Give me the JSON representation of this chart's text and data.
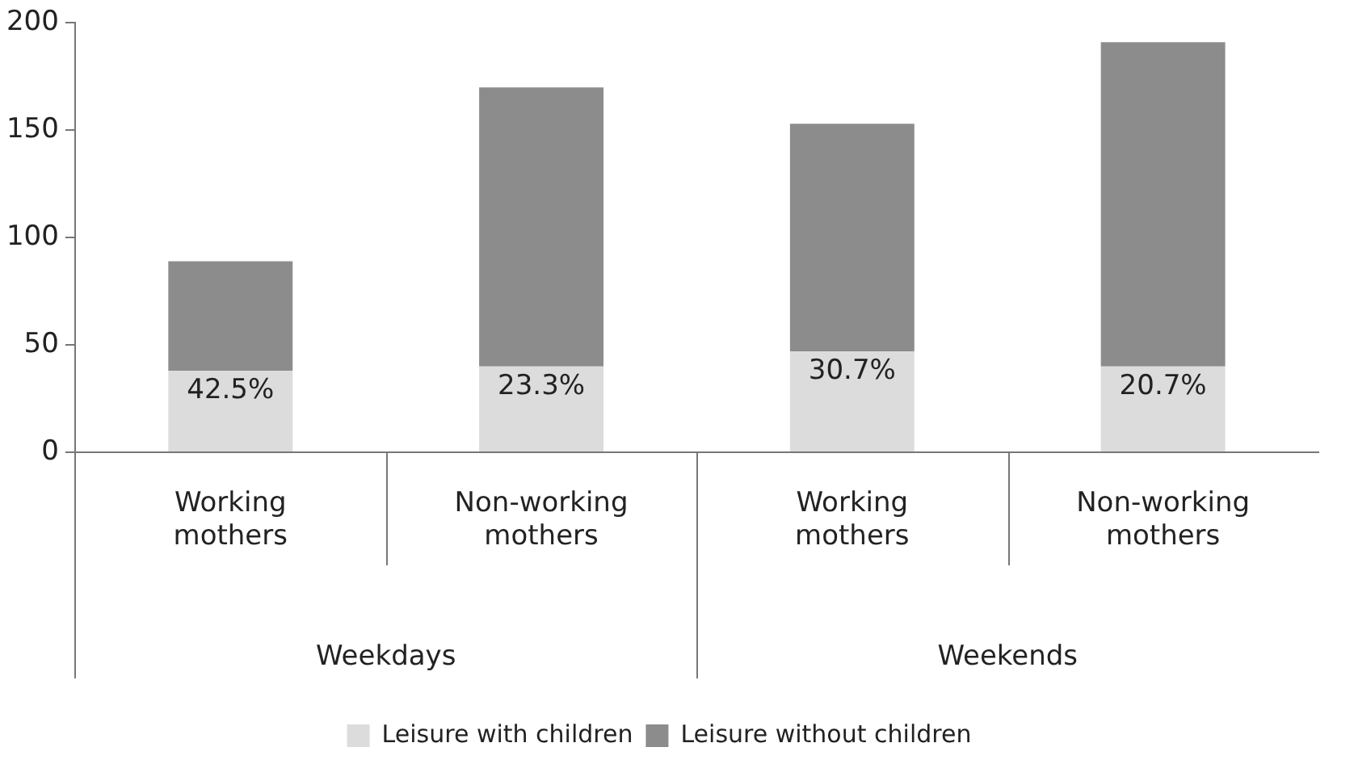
{
  "chart_data": {
    "type": "bar",
    "stacked": true,
    "categories": [
      "Working mothers",
      "Non-working mothers",
      "Working mothers",
      "Non-working mothers"
    ],
    "series": [
      {
        "name": "Leisure with children",
        "color": "#dcdcdc",
        "values": [
          38,
          40,
          47,
          40
        ]
      },
      {
        "name": "Leisure without children",
        "color": "#8c8c8c",
        "values": [
          51,
          130,
          106,
          151
        ]
      }
    ],
    "ylim": [
      0,
      200
    ],
    "yticks": [
      0,
      50,
      100,
      150,
      200
    ],
    "legend": "bottom",
    "annotations": [
      "Weekdays",
      "Weekends",
      "42.5%",
      "23.3%",
      "30.7%",
      "20.7%"
    ]
  }
}
